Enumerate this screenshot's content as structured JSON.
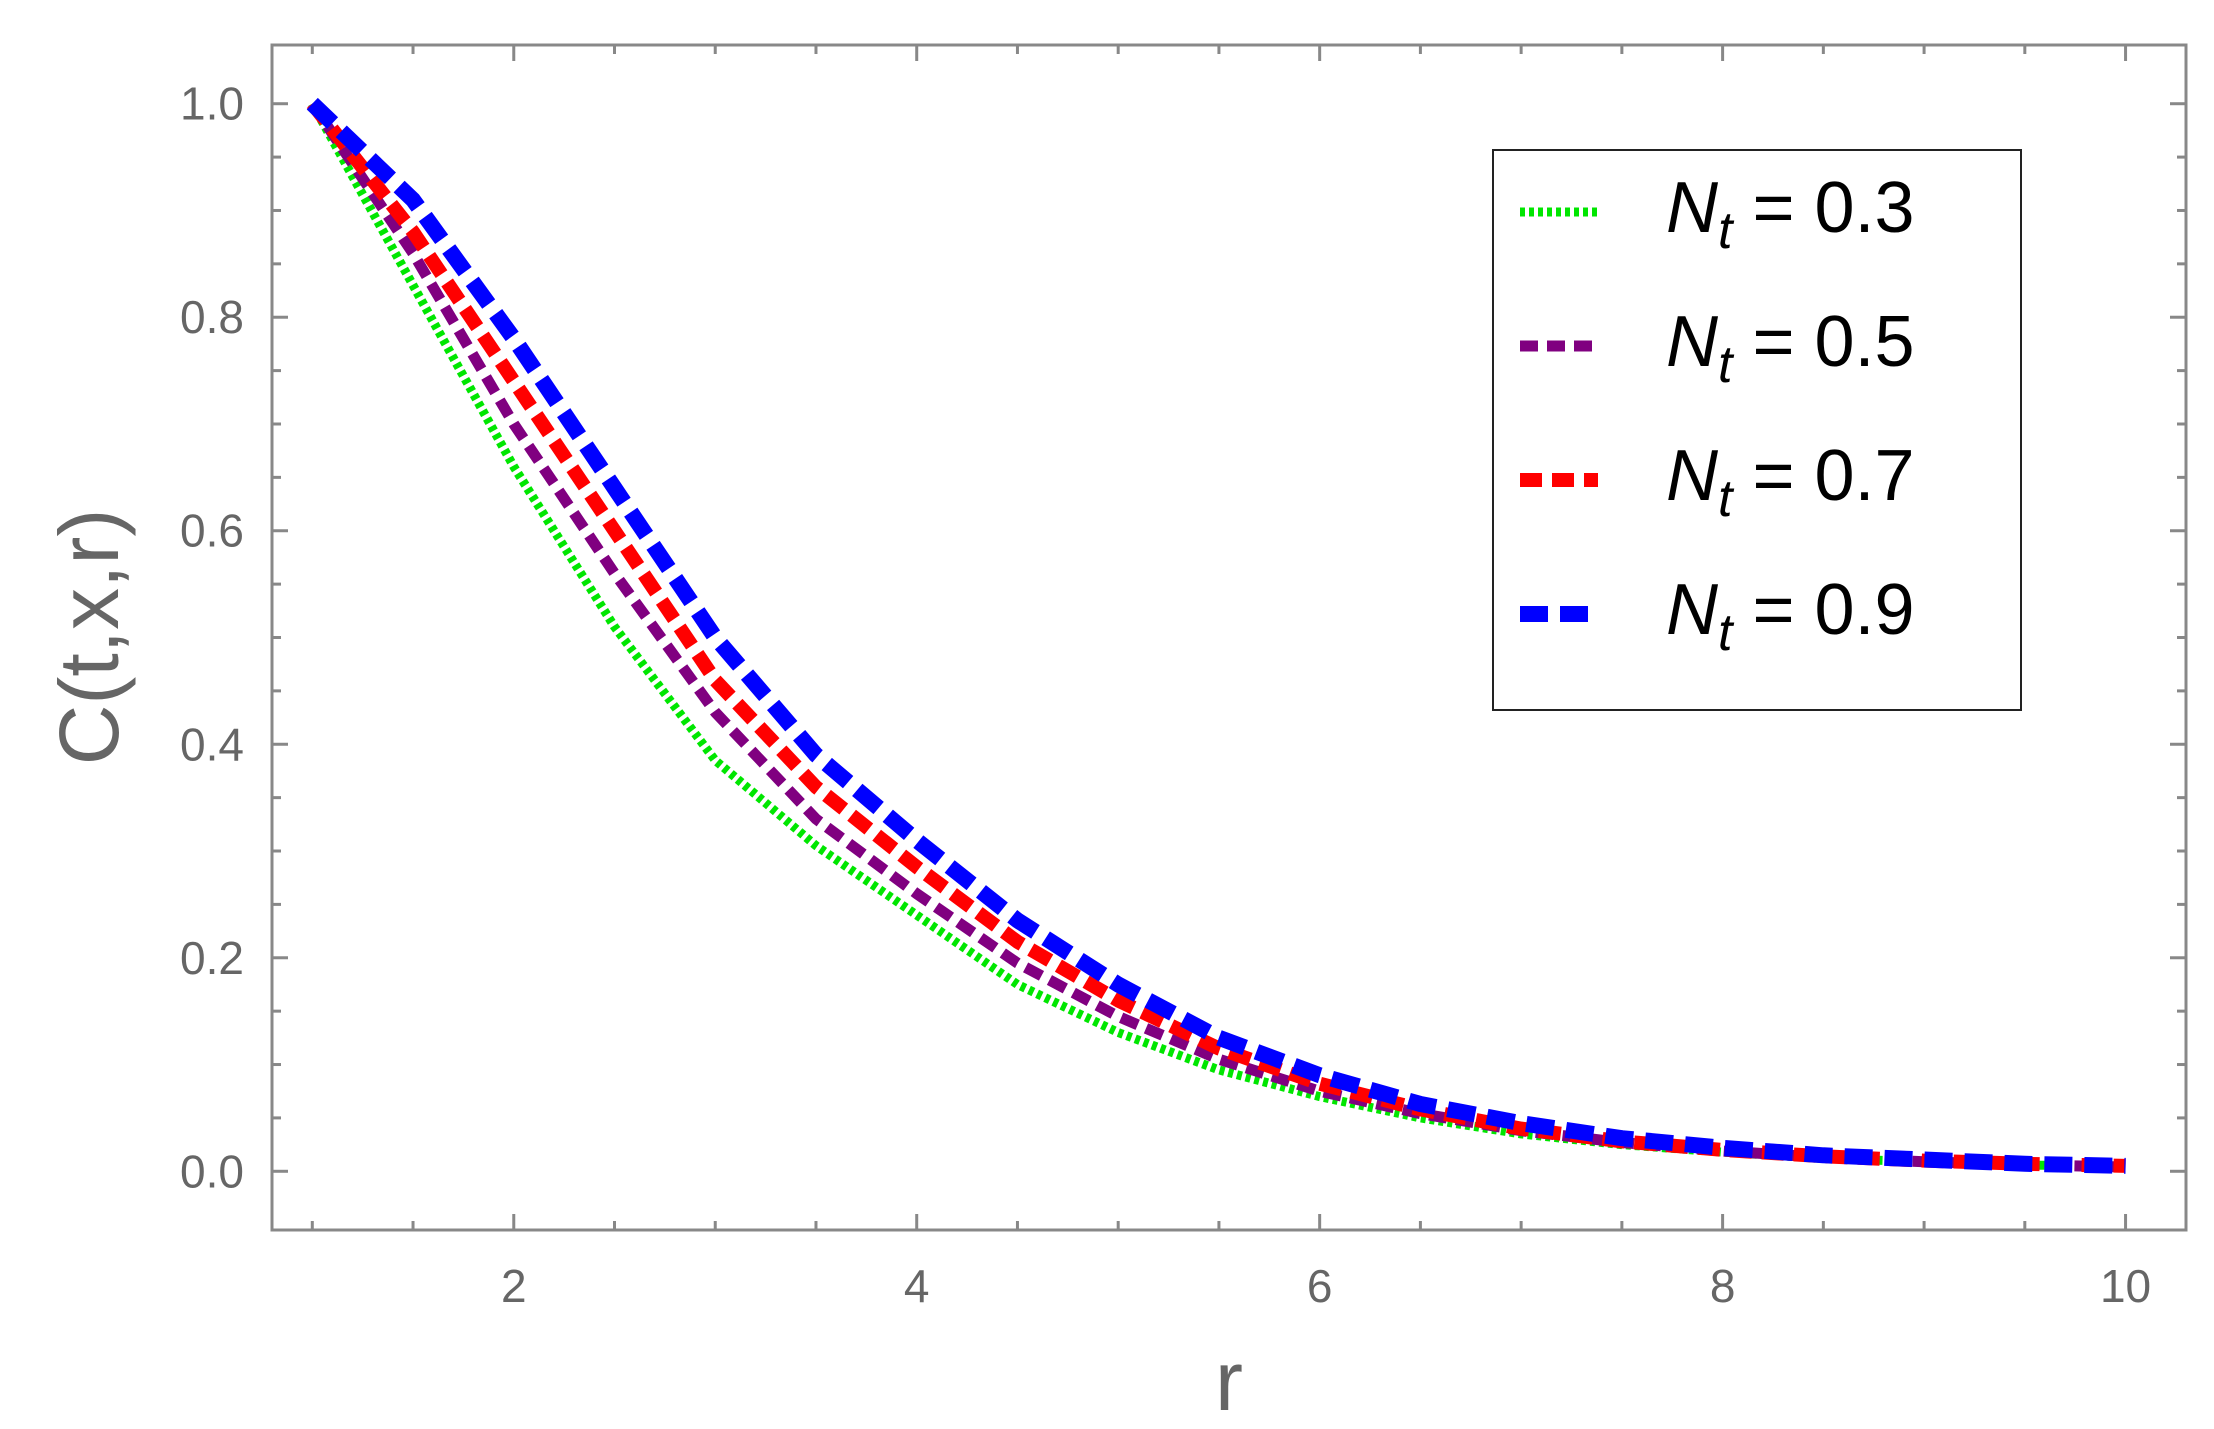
{
  "chart_data": {
    "type": "line",
    "xlabel": "r",
    "ylabel": "C(t,x,r)",
    "xlim": [
      0.8,
      10.3
    ],
    "ylim": [
      -0.055,
      1.055
    ],
    "x_ticks": [
      2,
      4,
      6,
      8,
      10
    ],
    "x_tick_labels": [
      "2",
      "4",
      "6",
      "8",
      "10"
    ],
    "y_ticks": [
      0.0,
      0.2,
      0.4,
      0.6,
      0.8,
      1.0
    ],
    "y_tick_labels": [
      "0.0",
      "0.2",
      "0.4",
      "0.6",
      "0.8",
      "1.0"
    ],
    "grid": false,
    "legend_position": "top-right",
    "x": [
      1,
      1.5,
      2,
      2.5,
      3,
      3.5,
      4,
      4.5,
      5,
      5.5,
      6,
      6.5,
      7,
      7.5,
      8,
      8.5,
      9,
      9.5,
      10
    ],
    "series": [
      {
        "name": "N_t = 0.3",
        "legend_symbol": "N",
        "legend_subscript": "t",
        "legend_value": " = 0.3",
        "color": "#00e600",
        "style": "dotted",
        "values": [
          1.0,
          0.83,
          0.66,
          0.51,
          0.385,
          0.305,
          0.24,
          0.175,
          0.13,
          0.095,
          0.07,
          0.05,
          0.035,
          0.025,
          0.018,
          0.012,
          0.009,
          0.006,
          0.004
        ]
      },
      {
        "name": "N_t = 0.5",
        "legend_symbol": "N",
        "legend_subscript": "t",
        "legend_value": " = 0.5",
        "color": "#800080",
        "style": "dashed",
        "values": [
          1.0,
          0.86,
          0.7,
          0.56,
          0.43,
          0.33,
          0.26,
          0.195,
          0.145,
          0.105,
          0.075,
          0.054,
          0.038,
          0.027,
          0.019,
          0.013,
          0.009,
          0.006,
          0.004
        ]
      },
      {
        "name": "N_t = 0.7",
        "legend_symbol": "N",
        "legend_subscript": "t",
        "legend_value": " = 0.7",
        "color": "#ff0000",
        "style": "dashed",
        "values": [
          1.0,
          0.88,
          0.74,
          0.6,
          0.46,
          0.36,
          0.285,
          0.215,
          0.16,
          0.115,
          0.082,
          0.058,
          0.04,
          0.028,
          0.02,
          0.014,
          0.01,
          0.007,
          0.005
        ]
      },
      {
        "name": "N_t = 0.9",
        "legend_symbol": "N",
        "legend_subscript": "t",
        "legend_value": " = 0.9",
        "color": "#0000ff",
        "style": "dashed",
        "values": [
          1.0,
          0.91,
          0.78,
          0.64,
          0.5,
          0.39,
          0.31,
          0.235,
          0.175,
          0.125,
          0.09,
          0.063,
          0.045,
          0.031,
          0.022,
          0.015,
          0.011,
          0.007,
          0.005
        ]
      }
    ]
  }
}
